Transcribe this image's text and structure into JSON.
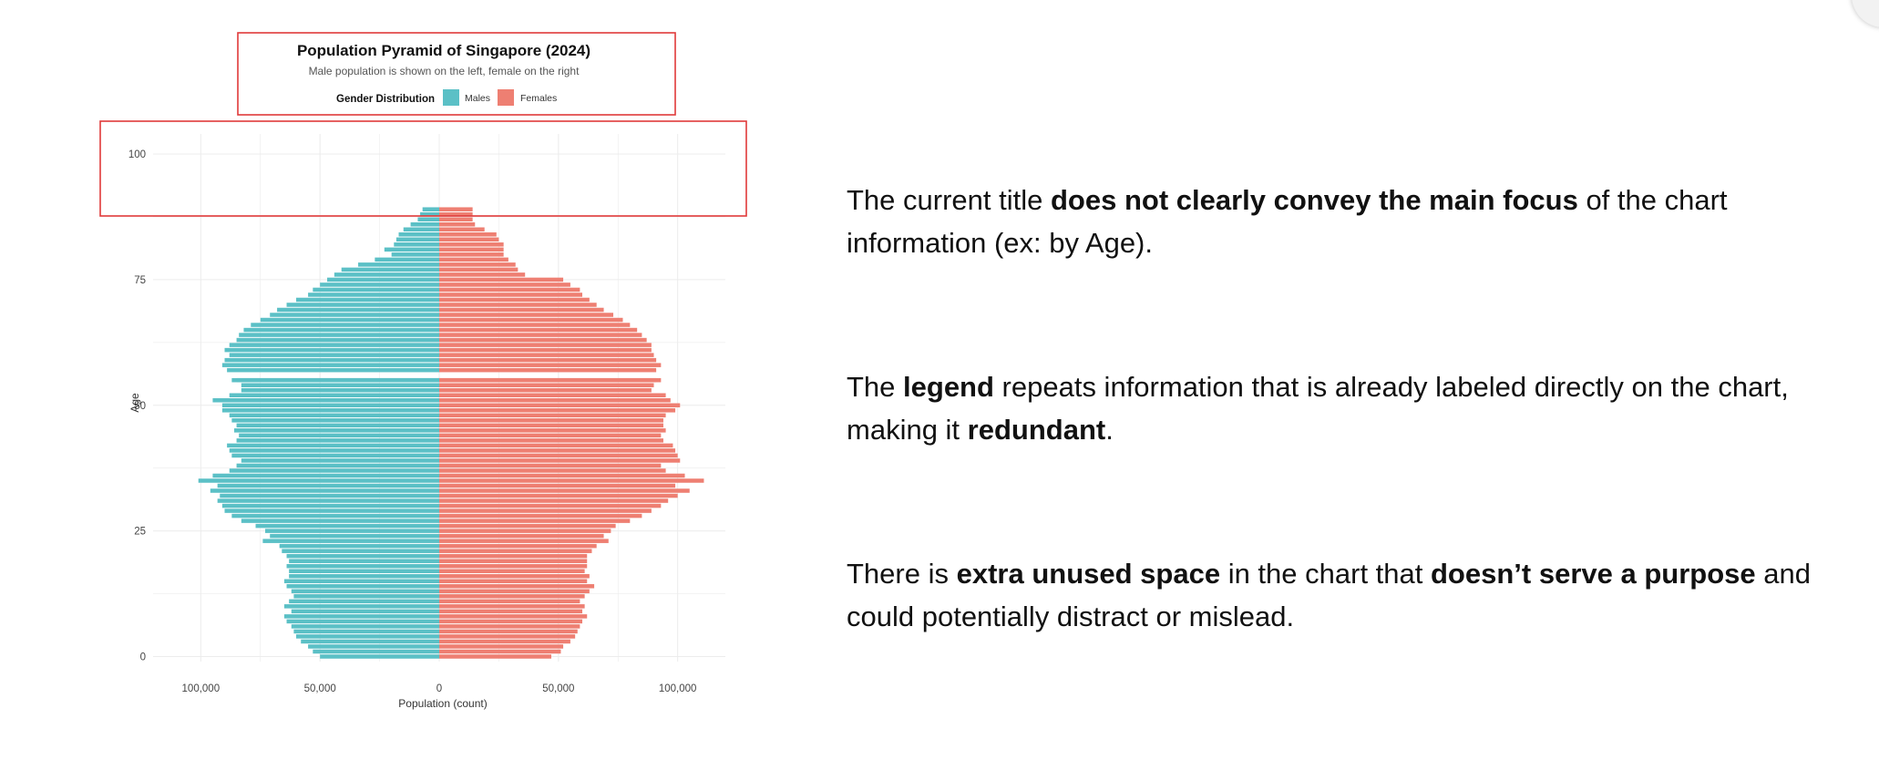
{
  "chart_data": {
    "type": "bar",
    "orientation": "horizontal-pyramid",
    "title": "Population Pyramid of Singapore (2024)",
    "subtitle": "Male population is shown on the left, female on the right",
    "legend": {
      "title": "Gender Distribution",
      "placement": "top",
      "entries": [
        {
          "label": "Males",
          "color": "#5bc0c6"
        },
        {
          "label": "Females",
          "color": "#ee7f72"
        }
      ]
    },
    "xlabel": "Population (count)",
    "ylabel": "Age",
    "xlim": [
      -120000,
      120000
    ],
    "ylim": [
      -1,
      104
    ],
    "x_ticks": [
      {
        "value": -100000,
        "label": "100,000"
      },
      {
        "value": -50000,
        "label": "50,000"
      },
      {
        "value": 0,
        "label": "0"
      },
      {
        "value": 50000,
        "label": "50,000"
      },
      {
        "value": 100000,
        "label": "100,000"
      }
    ],
    "y_ticks": [
      {
        "value": 0,
        "label": "0"
      },
      {
        "value": 25,
        "label": "25"
      },
      {
        "value": 50,
        "label": "50"
      },
      {
        "value": 75,
        "label": "75"
      },
      {
        "value": 100,
        "label": "100"
      }
    ],
    "grid": true,
    "ages": [
      0,
      1,
      2,
      3,
      4,
      5,
      6,
      7,
      8,
      9,
      10,
      11,
      12,
      13,
      14,
      15,
      16,
      17,
      18,
      19,
      20,
      21,
      22,
      23,
      24,
      25,
      26,
      27,
      28,
      29,
      30,
      31,
      32,
      33,
      34,
      35,
      36,
      37,
      38,
      39,
      40,
      41,
      42,
      43,
      44,
      45,
      46,
      47,
      48,
      49,
      50,
      51,
      52,
      53,
      54,
      55,
      55,
      57,
      58,
      59,
      60,
      61,
      62,
      63,
      64,
      65,
      66,
      67,
      68,
      69,
      70,
      71,
      72,
      73,
      74,
      75,
      76,
      77,
      78,
      79,
      80,
      81,
      82,
      83,
      84,
      85,
      86,
      87,
      88,
      89
    ],
    "series": [
      {
        "name": "Males",
        "color": "#5bc0c6",
        "values": [
          50000,
          53000,
          55000,
          58000,
          60000,
          61000,
          62000,
          64000,
          65000,
          62000,
          65000,
          63000,
          61000,
          62000,
          64000,
          65000,
          63000,
          63000,
          64000,
          63000,
          64000,
          66000,
          67000,
          74000,
          71000,
          73000,
          77000,
          83000,
          87000,
          90000,
          91000,
          93000,
          92000,
          96000,
          93000,
          101000,
          95000,
          88000,
          85000,
          83000,
          87000,
          88000,
          89000,
          85000,
          84000,
          86000,
          85000,
          87000,
          88000,
          91000,
          91000,
          95000,
          88000,
          83000,
          83000,
          85000,
          87000,
          89000,
          91000,
          90000,
          88000,
          90000,
          88000,
          85000,
          84000,
          82000,
          79000,
          75000,
          71000,
          68000,
          64000,
          60000,
          55000,
          53000,
          50000,
          47000,
          44000,
          41000,
          34000,
          27000,
          20000,
          23000,
          19000,
          18000,
          17000,
          15000,
          12000,
          9000,
          8000,
          7000
        ]
      },
      {
        "name": "Females",
        "color": "#ee7f72",
        "values": [
          47000,
          51000,
          52000,
          55000,
          57000,
          58000,
          59000,
          60000,
          62000,
          60000,
          61000,
          59000,
          61000,
          63000,
          65000,
          62000,
          63000,
          61000,
          62000,
          62000,
          62000,
          64000,
          66000,
          71000,
          69000,
          72000,
          74000,
          80000,
          85000,
          89000,
          93000,
          96000,
          100000,
          105000,
          99000,
          111000,
          103000,
          95000,
          93000,
          101000,
          100000,
          99000,
          98000,
          94000,
          93000,
          95000,
          94000,
          94000,
          95000,
          99000,
          101000,
          97000,
          95000,
          89000,
          90000,
          91000,
          93000,
          91000,
          93000,
          91000,
          90000,
          89000,
          89000,
          87000,
          85000,
          83000,
          80000,
          77000,
          73000,
          69000,
          66000,
          63000,
          60000,
          59000,
          55000,
          52000,
          36000,
          33000,
          32000,
          29000,
          27000,
          27000,
          27000,
          25000,
          24000,
          19000,
          15000,
          14000,
          14000,
          14000
        ]
      }
    ]
  },
  "callouts": [
    {
      "segments": [
        {
          "text": "The current title ",
          "bold": false
        },
        {
          "text": "does not clearly convey the main focus",
          "bold": true
        },
        {
          "text": " of the chart information (ex: by Age).",
          "bold": false
        }
      ]
    },
    {
      "segments": [
        {
          "text": "The ",
          "bold": false
        },
        {
          "text": "legend",
          "bold": true
        },
        {
          "text": " repeats information that is already labeled directly on the chart, making it ",
          "bold": false
        },
        {
          "text": "redundant",
          "bold": true
        },
        {
          "text": ".",
          "bold": false
        }
      ]
    },
    {
      "segments": [
        {
          "text": "There is ",
          "bold": false
        },
        {
          "text": "extra unused space",
          "bold": true
        },
        {
          "text": " in the chart that ",
          "bold": false
        },
        {
          "text": "doesn’t serve a purpose",
          "bold": true
        },
        {
          "text": " and could potentially distract or mislead.",
          "bold": false
        }
      ]
    }
  ],
  "highlight_color": "#e03a3a",
  "gridline_color": "#ececec"
}
